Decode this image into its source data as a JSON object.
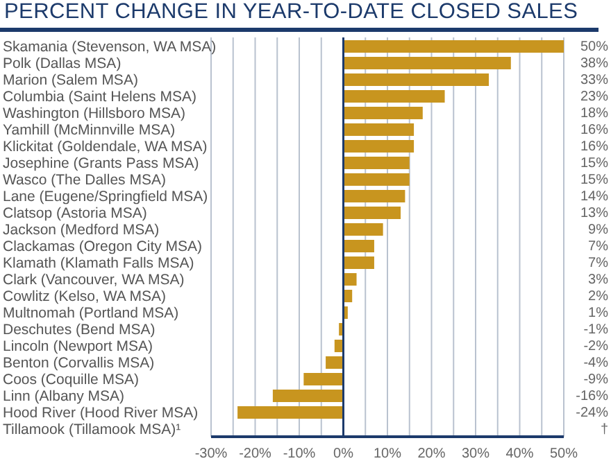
{
  "chart_data": {
    "type": "bar",
    "orientation": "horizontal",
    "title": "PERCENT CHANGE IN YEAR-TO-DATE CLOSED SALES",
    "categories": [
      "Skamania (Stevenson, WA MSA)",
      "Polk (Dallas MSA)",
      "Marion (Salem MSA)",
      "Columbia (Saint Helens MSA)",
      "Washington (Hillsboro MSA)",
      "Yamhill (McMinnville MSA)",
      "Klickitat (Goldendale, WA MSA)",
      "Josephine (Grants Pass MSA)",
      "Wasco (The Dalles MSA)",
      "Lane (Eugene/Springfield MSA)",
      "Clatsop (Astoria MSA)",
      "Jackson (Medford MSA)",
      "Clackamas (Oregon City MSA)",
      "Klamath (Klamath Falls MSA)",
      "Clark (Vancouver, WA MSA)",
      "Cowlitz (Kelso, WA MSA)",
      "Multnomah (Portland MSA)",
      "Deschutes (Bend MSA)",
      "Lincoln (Newport MSA)",
      "Benton (Corvallis MSA)",
      "Coos (Coquille MSA)",
      "Linn (Albany MSA)",
      "Hood River (Hood River MSA)",
      "Tillamook (Tillamook MSA)¹"
    ],
    "values": [
      50,
      38,
      33,
      23,
      18,
      16,
      16,
      15,
      15,
      14,
      13,
      9,
      7,
      7,
      3,
      2,
      1,
      -1,
      -2,
      -4,
      -9,
      -16,
      -24,
      null
    ],
    "value_labels": [
      "50%",
      "38%",
      "33%",
      "23%",
      "18%",
      "16%",
      "16%",
      "15%",
      "15%",
      "14%",
      "13%",
      "9%",
      "7%",
      "7%",
      "3%",
      "2%",
      "1%",
      "-1%",
      "-2%",
      "-4%",
      "-9%",
      "-16%",
      "-24%",
      "†"
    ],
    "color": "#c8951f",
    "xlim": [
      -30,
      50
    ],
    "xticks": [
      {
        "value": -30,
        "label": "-30%"
      },
      {
        "value": -25,
        "label": null
      },
      {
        "value": -20,
        "label": "-20%"
      },
      {
        "value": -15,
        "label": null
      },
      {
        "value": -10,
        "label": "-10%"
      },
      {
        "value": -5,
        "label": null
      },
      {
        "value": 0,
        "label": "0%"
      },
      {
        "value": 5,
        "label": null
      },
      {
        "value": 10,
        "label": "10%"
      },
      {
        "value": 15,
        "label": null
      },
      {
        "value": 20,
        "label": "20%"
      },
      {
        "value": 25,
        "label": null
      },
      {
        "value": 30,
        "label": "30%"
      },
      {
        "value": 35,
        "label": null
      },
      {
        "value": 40,
        "label": "40%"
      },
      {
        "value": 45,
        "label": null
      },
      {
        "value": 50,
        "label": "50%"
      }
    ],
    "ref_lines": [
      {
        "axis": "x",
        "value": 0,
        "color": "#1c3a6b"
      }
    ],
    "grid": "x",
    "legend": false
  }
}
